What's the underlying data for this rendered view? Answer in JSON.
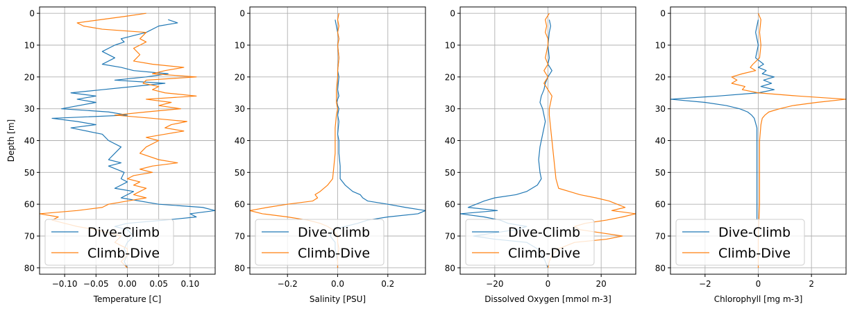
{
  "colors": {
    "dive_climb": "#1f77b4",
    "climb_dive": "#ff7f0e",
    "grid": "#b0b0b0"
  },
  "chart_data": [
    {
      "type": "line",
      "xlabel": "Temperature [C]",
      "ylabel": "Depth [m]",
      "xlim": [
        -0.14,
        0.14
      ],
      "ylim": [
        82,
        -2
      ],
      "xticks": [
        -0.1,
        -0.05,
        0.0,
        0.05,
        0.1
      ],
      "xtick_labels": [
        "−0.10",
        "−0.05",
        "0.00",
        "0.05",
        "0.10"
      ],
      "yticks": [
        0,
        10,
        20,
        30,
        40,
        50,
        60,
        70,
        80
      ],
      "ytick_labels": [
        "0",
        "10",
        "20",
        "30",
        "40",
        "50",
        "60",
        "70",
        "80"
      ],
      "grid": true,
      "legend_position": "lower-left",
      "series": [
        {
          "name": "Dive-Climb",
          "color": "#1f77b4",
          "depth": [
            2,
            3,
            4,
            6,
            8,
            9,
            10,
            12,
            14,
            15,
            16,
            17,
            18,
            19,
            20,
            21,
            22,
            24,
            25,
            26,
            27,
            28,
            30,
            31,
            32,
            33,
            34,
            35,
            36,
            38,
            40,
            42,
            44,
            46,
            47,
            48,
            50,
            52,
            53,
            55,
            56,
            58,
            60,
            61,
            62,
            63,
            64,
            65,
            66,
            67,
            68,
            70,
            72,
            74,
            76,
            78,
            80
          ],
          "x": [
            0.065,
            0.08,
            0.05,
            0.03,
            -0.01,
            -0.005,
            -0.02,
            -0.04,
            -0.02,
            -0.03,
            -0.04,
            -0.01,
            0.01,
            0.065,
            0.03,
            -0.02,
            0.06,
            -0.04,
            -0.09,
            -0.05,
            -0.08,
            -0.05,
            -0.105,
            -0.03,
            0.0,
            -0.12,
            -0.08,
            -0.05,
            -0.09,
            -0.04,
            -0.03,
            -0.01,
            -0.02,
            -0.03,
            -0.01,
            -0.03,
            -0.005,
            -0.01,
            0.0,
            -0.02,
            0.01,
            -0.01,
            0.05,
            0.12,
            0.14,
            0.1,
            0.11,
            0.06,
            0.0,
            -0.02,
            0.0,
            0.01,
            0.0,
            -0.005,
            0.0,
            -0.005,
            0.0
          ]
        },
        {
          "name": "Climb-Dive",
          "color": "#ff7f0e",
          "depth": [
            0,
            1,
            3,
            4,
            5,
            6,
            8,
            9,
            10,
            11,
            13,
            15,
            16,
            17,
            18,
            19,
            20,
            21,
            22,
            23,
            24,
            25,
            26,
            27,
            28,
            29,
            30,
            31,
            32,
            33,
            34,
            35,
            36,
            37,
            38,
            39,
            40,
            42,
            44,
            46,
            47,
            48,
            49,
            50,
            51,
            52,
            53,
            54,
            55,
            56,
            57,
            58,
            59,
            60,
            61,
            62,
            63,
            64,
            65,
            66,
            67,
            68,
            70,
            72,
            74,
            76,
            78,
            80
          ],
          "x": [
            0.03,
            -0.005,
            -0.08,
            -0.07,
            -0.04,
            0.03,
            0.02,
            0.03,
            0.02,
            0.01,
            0.02,
            0.01,
            0.04,
            0.09,
            0.06,
            0.04,
            0.11,
            0.03,
            0.025,
            0.05,
            0.04,
            0.06,
            0.11,
            0.03,
            0.07,
            0.05,
            0.085,
            0.03,
            -0.02,
            0.04,
            0.095,
            0.07,
            0.06,
            0.09,
            0.06,
            0.03,
            0.05,
            0.03,
            0.02,
            0.05,
            0.08,
            0.04,
            0.02,
            0.04,
            0.01,
            0.0,
            0.02,
            0.01,
            0.03,
            0.02,
            0.01,
            0.03,
            0.0,
            -0.03,
            -0.04,
            -0.08,
            -0.14,
            -0.11,
            -0.12,
            -0.1,
            -0.08,
            -0.05,
            -0.01,
            -0.02,
            0.0,
            0.0,
            -0.01,
            0.0
          ]
        }
      ]
    },
    {
      "type": "line",
      "xlabel": "Salinity [PSU]",
      "ylabel": "",
      "xlim": [
        -0.35,
        0.35
      ],
      "ylim": [
        82,
        -2
      ],
      "xticks": [
        -0.2,
        0.0,
        0.2
      ],
      "xtick_labels": [
        "−0.2",
        "0.0",
        "0.2"
      ],
      "yticks": [
        0,
        10,
        20,
        30,
        40,
        50,
        60,
        70,
        80
      ],
      "ytick_labels": [
        "0",
        "10",
        "20",
        "30",
        "40",
        "50",
        "60",
        "70",
        "80"
      ],
      "grid": true,
      "legend_position": "lower-left",
      "series": [
        {
          "name": "Dive-Climb",
          "color": "#1f77b4",
          "depth": [
            2,
            4,
            6,
            8,
            10,
            14,
            18,
            20,
            24,
            26,
            28,
            30,
            32,
            34,
            38,
            40,
            44,
            48,
            52,
            54,
            56,
            57,
            58,
            59,
            60,
            61,
            62,
            63,
            64,
            65,
            66,
            67,
            68,
            70,
            72,
            74,
            76,
            78,
            80
          ],
          "x": [
            -0.01,
            -0.005,
            0.0,
            0.005,
            0.0,
            0.005,
            0.0,
            0.005,
            0.0,
            0.005,
            -0.005,
            0.005,
            0.0,
            0.005,
            0.0,
            0.005,
            0.005,
            0.01,
            0.01,
            0.03,
            0.06,
            0.09,
            0.1,
            0.12,
            0.2,
            0.27,
            0.35,
            0.32,
            0.2,
            0.12,
            0.08,
            0.03,
            -0.02,
            -0.03,
            -0.01,
            -0.01,
            -0.005,
            0.0,
            0.0
          ]
        },
        {
          "name": "Climb-Dive",
          "color": "#ff7f0e",
          "depth": [
            0,
            2,
            4,
            6,
            8,
            10,
            14,
            18,
            20,
            24,
            28,
            30,
            32,
            36,
            40,
            44,
            48,
            52,
            54,
            56,
            57,
            58,
            59,
            60,
            61,
            62,
            63,
            64,
            65,
            66,
            67,
            68,
            70,
            72,
            74,
            76,
            78,
            80
          ],
          "x": [
            0.005,
            0.0,
            0.005,
            0.0,
            0.005,
            0.0,
            0.005,
            0.0,
            0.0,
            -0.005,
            -0.005,
            0.0,
            -0.005,
            -0.01,
            -0.01,
            -0.01,
            -0.015,
            -0.02,
            -0.04,
            -0.07,
            -0.09,
            -0.08,
            -0.1,
            -0.2,
            -0.28,
            -0.35,
            -0.3,
            -0.2,
            -0.12,
            -0.07,
            -0.04,
            -0.02,
            0.0,
            0.0,
            0.005,
            0.0,
            0.0,
            0.0
          ]
        }
      ]
    },
    {
      "type": "line",
      "xlabel": "Dissolved Oxygen [mmol m-3]",
      "ylabel": "",
      "xlim": [
        -33,
        33
      ],
      "ylim": [
        82,
        -2
      ],
      "xticks": [
        -20,
        0,
        20
      ],
      "xtick_labels": [
        "−20",
        "0",
        "20"
      ],
      "yticks": [
        0,
        10,
        20,
        30,
        40,
        50,
        60,
        70,
        80
      ],
      "ytick_labels": [
        "0",
        "10",
        "20",
        "30",
        "40",
        "50",
        "60",
        "70",
        "80"
      ],
      "grid": true,
      "legend_position": "lower-left",
      "series": [
        {
          "name": "Dive-Climb",
          "color": "#1f77b4",
          "depth": [
            2,
            4,
            6,
            10,
            14,
            16,
            18,
            20,
            22,
            24,
            26,
            28,
            30,
            34,
            38,
            42,
            46,
            50,
            52,
            54,
            56,
            57,
            58,
            59,
            60,
            61,
            62,
            63,
            64,
            65,
            66,
            67,
            68,
            69,
            70,
            71,
            72,
            74,
            76,
            78,
            80
          ],
          "x": [
            0.5,
            1.0,
            0.5,
            0.0,
            0.5,
            0.0,
            1.5,
            0.0,
            -1.0,
            -1.5,
            -2.5,
            -3.0,
            -2.0,
            -1.0,
            -2.0,
            -3.0,
            -3.5,
            -3.0,
            -2.5,
            -4.0,
            -8.0,
            -12.0,
            -20.0,
            -24.0,
            -27.0,
            -30.0,
            -19.0,
            -33.0,
            -24.0,
            -18.0,
            -15.0,
            -8.0,
            -12.0,
            -20.0,
            -28.0,
            -20.0,
            -8.0,
            -4.0,
            -2.0,
            -1.0,
            0.0
          ]
        },
        {
          "name": "Climb-Dive",
          "color": "#ff7f0e",
          "depth": [
            0,
            2,
            4,
            6,
            8,
            10,
            12,
            14,
            16,
            18,
            20,
            22,
            24,
            26,
            28,
            30,
            32,
            36,
            40,
            44,
            48,
            52,
            55,
            56,
            57,
            58,
            59,
            60,
            61,
            62,
            63,
            64,
            65,
            66,
            67,
            68,
            69,
            70,
            71,
            72,
            74,
            76,
            78,
            80
          ],
          "x": [
            0.5,
            -1.0,
            -0.5,
            -1.0,
            0.0,
            0.0,
            -0.5,
            -1.0,
            0.0,
            -1.5,
            0.0,
            -1.5,
            0.0,
            1.5,
            1.0,
            0.5,
            0.5,
            1.0,
            1.5,
            2.0,
            2.5,
            3.0,
            4.0,
            8.0,
            12.0,
            18.0,
            23.0,
            26.0,
            29.0,
            24.0,
            33.0,
            28.0,
            22.0,
            14.0,
            10.0,
            12.0,
            20.0,
            28.0,
            22.0,
            10.0,
            4.0,
            1.5,
            0.5,
            0.0
          ]
        }
      ]
    },
    {
      "type": "line",
      "xlabel": "Chlorophyll [mg m-3]",
      "ylabel": "",
      "xlim": [
        -3.3,
        3.3
      ],
      "ylim": [
        82,
        -2
      ],
      "xticks": [
        -2,
        0,
        2
      ],
      "xtick_labels": [
        "−2",
        "0",
        "2"
      ],
      "yticks": [
        0,
        10,
        20,
        30,
        40,
        50,
        60,
        70,
        80
      ],
      "ytick_labels": [
        "0",
        "10",
        "20",
        "30",
        "40",
        "50",
        "60",
        "70",
        "80"
      ],
      "grid": true,
      "legend_position": "lower-left",
      "series": [
        {
          "name": "Dive-Climb",
          "color": "#1f77b4",
          "depth": [
            2,
            6,
            10,
            14,
            16,
            17,
            18,
            19,
            20,
            21,
            22,
            23,
            24,
            25,
            26,
            27,
            28,
            29,
            30,
            31,
            32,
            33,
            36,
            40,
            50,
            60,
            65
          ],
          "x": [
            0.0,
            -0.1,
            0.0,
            -0.1,
            0.2,
            0.0,
            0.3,
            0.15,
            0.6,
            0.2,
            0.5,
            0.1,
            0.6,
            0.0,
            -1.5,
            -3.3,
            -2.0,
            -1.2,
            -0.7,
            -0.4,
            -0.25,
            -0.15,
            -0.05,
            -0.05,
            -0.05,
            -0.05,
            -0.05
          ]
        },
        {
          "name": "Climb-Dive",
          "color": "#ff7f0e",
          "depth": [
            0,
            2,
            6,
            10,
            14,
            16,
            17,
            18,
            19,
            20,
            21,
            22,
            23,
            24,
            25,
            26,
            27,
            28,
            29,
            30,
            31,
            32,
            33,
            35,
            40,
            50,
            60,
            70,
            80
          ],
          "x": [
            0.0,
            0.1,
            0.05,
            0.1,
            0.05,
            -0.2,
            -0.3,
            -0.1,
            -0.6,
            -1.0,
            -0.8,
            -1.0,
            -0.5,
            -0.6,
            0.0,
            1.5,
            3.3,
            2.2,
            1.3,
            0.8,
            0.4,
            0.25,
            0.15,
            0.1,
            0.05,
            0.05,
            0.05,
            0.0,
            0.0
          ]
        }
      ]
    }
  ]
}
